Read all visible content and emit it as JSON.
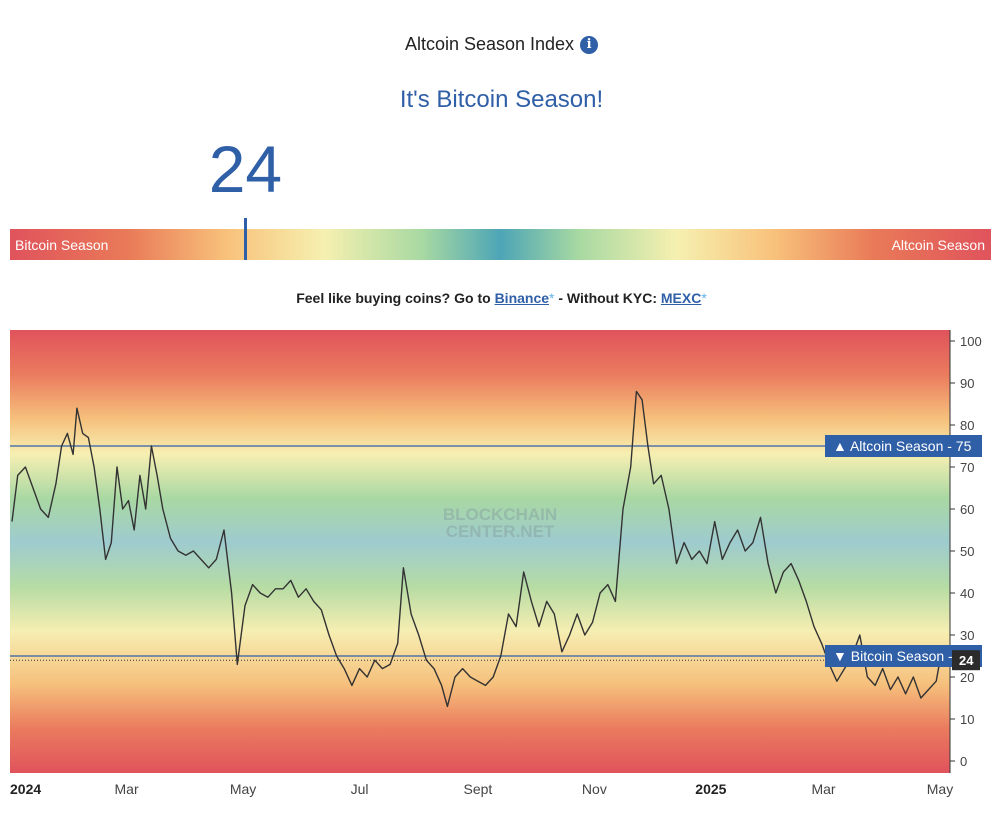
{
  "header": {
    "title": "Altcoin Season Index",
    "info_icon": "i",
    "headline": "It's Bitcoin Season!",
    "current_value": "24"
  },
  "scale": {
    "left_label": "Bitcoin Season",
    "right_label": "Altcoin Season",
    "value": 24
  },
  "promo": {
    "text_prefix": "Feel like buying coins? Go to ",
    "link1": "Binance",
    "star": "*",
    "text_middle": " - Without KYC: ",
    "link2": "MEXC"
  },
  "colors": {
    "accent": "#2f5fa7",
    "red": "#e0535c",
    "teal": "#4da5b6",
    "yellow": "#f6f0b0"
  },
  "chart_data": {
    "type": "line",
    "ylim": [
      0,
      100
    ],
    "yticks": [
      0,
      10,
      20,
      30,
      40,
      50,
      60,
      70,
      80,
      90,
      100
    ],
    "xtick_labels": [
      "2024",
      "Mar",
      "May",
      "Jul",
      "Sept",
      "Nov",
      "2025",
      "Mar",
      "May"
    ],
    "xtick_dates": [
      "2024-01-01",
      "2024-03-01",
      "2024-05-01",
      "2024-07-01",
      "2024-09-01",
      "2024-11-01",
      "2025-01-01",
      "2025-03-01",
      "2025-05-01"
    ],
    "x_range": [
      "2024-01-01",
      "2025-05-01"
    ],
    "watermark": [
      "BLOCKCHAIN",
      "CENTER.NET"
    ],
    "reference_lines": [
      {
        "label": "▲ Altcoin Season",
        "value": 75
      },
      {
        "label": "▼ Bitcoin Season",
        "value": 25
      }
    ],
    "current_value": 24,
    "series": [
      {
        "points": [
          [
            "2024-01-01",
            57
          ],
          [
            "2024-01-04",
            68
          ],
          [
            "2024-01-08",
            70
          ],
          [
            "2024-01-12",
            65
          ],
          [
            "2024-01-16",
            60
          ],
          [
            "2024-01-20",
            58
          ],
          [
            "2024-01-24",
            66
          ],
          [
            "2024-01-27",
            75
          ],
          [
            "2024-01-30",
            78
          ],
          [
            "2024-02-02",
            73
          ],
          [
            "2024-02-04",
            84
          ],
          [
            "2024-02-07",
            78
          ],
          [
            "2024-02-10",
            77
          ],
          [
            "2024-02-13",
            70
          ],
          [
            "2024-02-16",
            60
          ],
          [
            "2024-02-19",
            48
          ],
          [
            "2024-02-22",
            52
          ],
          [
            "2024-02-25",
            70
          ],
          [
            "2024-02-28",
            60
          ],
          [
            "2024-03-02",
            62
          ],
          [
            "2024-03-05",
            55
          ],
          [
            "2024-03-08",
            68
          ],
          [
            "2024-03-11",
            60
          ],
          [
            "2024-03-14",
            75
          ],
          [
            "2024-03-17",
            68
          ],
          [
            "2024-03-20",
            60
          ],
          [
            "2024-03-24",
            53
          ],
          [
            "2024-03-28",
            50
          ],
          [
            "2024-04-01",
            49
          ],
          [
            "2024-04-05",
            50
          ],
          [
            "2024-04-09",
            48
          ],
          [
            "2024-04-13",
            46
          ],
          [
            "2024-04-17",
            48
          ],
          [
            "2024-04-21",
            55
          ],
          [
            "2024-04-25",
            40
          ],
          [
            "2024-04-28",
            23
          ],
          [
            "2024-05-02",
            37
          ],
          [
            "2024-05-06",
            42
          ],
          [
            "2024-05-10",
            40
          ],
          [
            "2024-05-14",
            39
          ],
          [
            "2024-05-18",
            41
          ],
          [
            "2024-05-22",
            41
          ],
          [
            "2024-05-26",
            43
          ],
          [
            "2024-05-30",
            39
          ],
          [
            "2024-06-03",
            41
          ],
          [
            "2024-06-07",
            38
          ],
          [
            "2024-06-11",
            36
          ],
          [
            "2024-06-15",
            30
          ],
          [
            "2024-06-19",
            25
          ],
          [
            "2024-06-23",
            22
          ],
          [
            "2024-06-27",
            18
          ],
          [
            "2024-07-01",
            22
          ],
          [
            "2024-07-05",
            20
          ],
          [
            "2024-07-09",
            24
          ],
          [
            "2024-07-13",
            22
          ],
          [
            "2024-07-17",
            23
          ],
          [
            "2024-07-21",
            28
          ],
          [
            "2024-07-24",
            46
          ],
          [
            "2024-07-28",
            35
          ],
          [
            "2024-08-01",
            30
          ],
          [
            "2024-08-05",
            24
          ],
          [
            "2024-08-09",
            22
          ],
          [
            "2024-08-13",
            18
          ],
          [
            "2024-08-16",
            13
          ],
          [
            "2024-08-20",
            20
          ],
          [
            "2024-08-24",
            22
          ],
          [
            "2024-08-28",
            20
          ],
          [
            "2024-09-01",
            19
          ],
          [
            "2024-09-05",
            18
          ],
          [
            "2024-09-09",
            20
          ],
          [
            "2024-09-13",
            25
          ],
          [
            "2024-09-17",
            35
          ],
          [
            "2024-09-21",
            32
          ],
          [
            "2024-09-25",
            45
          ],
          [
            "2024-09-29",
            38
          ],
          [
            "2024-10-03",
            32
          ],
          [
            "2024-10-07",
            38
          ],
          [
            "2024-10-11",
            35
          ],
          [
            "2024-10-15",
            26
          ],
          [
            "2024-10-19",
            30
          ],
          [
            "2024-10-23",
            35
          ],
          [
            "2024-10-27",
            30
          ],
          [
            "2024-10-31",
            33
          ],
          [
            "2024-11-04",
            40
          ],
          [
            "2024-11-08",
            42
          ],
          [
            "2024-11-12",
            38
          ],
          [
            "2024-11-16",
            60
          ],
          [
            "2024-11-20",
            70
          ],
          [
            "2024-11-23",
            88
          ],
          [
            "2024-11-26",
            86
          ],
          [
            "2024-11-29",
            75
          ],
          [
            "2024-12-02",
            66
          ],
          [
            "2024-12-06",
            68
          ],
          [
            "2024-12-10",
            60
          ],
          [
            "2024-12-14",
            47
          ],
          [
            "2024-12-18",
            52
          ],
          [
            "2024-12-22",
            48
          ],
          [
            "2024-12-26",
            50
          ],
          [
            "2024-12-30",
            47
          ],
          [
            "2025-01-03",
            57
          ],
          [
            "2025-01-07",
            48
          ],
          [
            "2025-01-11",
            52
          ],
          [
            "2025-01-15",
            55
          ],
          [
            "2025-01-19",
            50
          ],
          [
            "2025-01-23",
            52
          ],
          [
            "2025-01-27",
            58
          ],
          [
            "2025-01-31",
            47
          ],
          [
            "2025-02-04",
            40
          ],
          [
            "2025-02-08",
            45
          ],
          [
            "2025-02-12",
            47
          ],
          [
            "2025-02-16",
            43
          ],
          [
            "2025-02-20",
            38
          ],
          [
            "2025-02-24",
            32
          ],
          [
            "2025-02-28",
            28
          ],
          [
            "2025-03-04",
            23
          ],
          [
            "2025-03-08",
            19
          ],
          [
            "2025-03-12",
            22
          ],
          [
            "2025-03-16",
            25
          ],
          [
            "2025-03-20",
            30
          ],
          [
            "2025-03-24",
            20
          ],
          [
            "2025-03-28",
            18
          ],
          [
            "2025-04-01",
            22
          ],
          [
            "2025-04-05",
            17
          ],
          [
            "2025-04-09",
            20
          ],
          [
            "2025-04-13",
            16
          ],
          [
            "2025-04-17",
            20
          ],
          [
            "2025-04-21",
            15
          ],
          [
            "2025-04-25",
            17
          ],
          [
            "2025-04-29",
            19
          ],
          [
            "2025-05-01",
            24
          ]
        ]
      }
    ]
  }
}
